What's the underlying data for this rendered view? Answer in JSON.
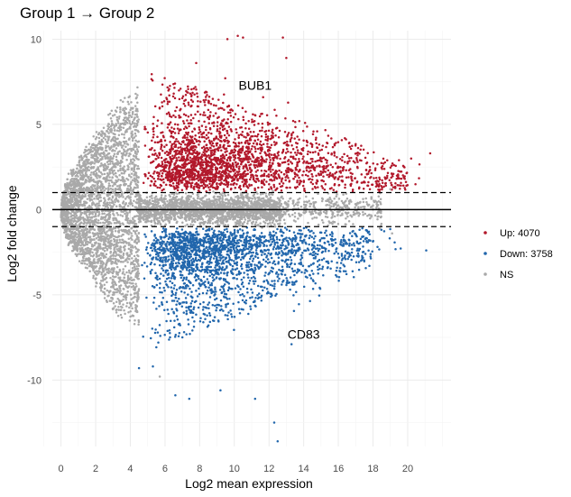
{
  "chart_data": {
    "type": "scatter",
    "title": "Group 1 → Group 2",
    "xlabel": "Log2 mean expression",
    "ylabel": "Log2 fold change",
    "xlim": [
      -0.5,
      22.5
    ],
    "ylim": [
      -13.9,
      10.5
    ],
    "x_ticks": [
      0,
      2,
      4,
      6,
      8,
      10,
      12,
      14,
      16,
      18,
      20
    ],
    "y_ticks": [
      -10,
      -5,
      0,
      5,
      10
    ],
    "grid": true,
    "reference_lines": {
      "zero": 0,
      "thresholds": [
        1,
        -1
      ]
    },
    "legend_position": "right",
    "colors": {
      "up": "#b2182b",
      "down": "#2166ac",
      "ns": "#a9a9a9"
    },
    "series": [
      {
        "name": "Up: 4070",
        "key": "up",
        "count": 4070
      },
      {
        "name": "Down: 3758",
        "key": "down",
        "count": 3758
      },
      {
        "name": "NS",
        "key": "ns"
      }
    ],
    "annotations": [
      {
        "text": "BUB1",
        "x": 11.2,
        "y": 7.3
      },
      {
        "text": "CD83",
        "x": 14.0,
        "y": -7.3
      }
    ],
    "outliers": {
      "up": [
        [
          10.2,
          10.2
        ],
        [
          10.5,
          10.1
        ],
        [
          12.8,
          10.1
        ],
        [
          9.6,
          10.0
        ],
        [
          13.0,
          8.9
        ],
        [
          7.8,
          8.6
        ],
        [
          20.2,
          3.0
        ],
        [
          21.3,
          3.3
        ],
        [
          19.5,
          2.9
        ],
        [
          18.6,
          2.7
        ]
      ],
      "down": [
        [
          12.3,
          -12.5
        ],
        [
          12.5,
          -13.6
        ],
        [
          6.6,
          -10.9
        ],
        [
          7.4,
          -11.1
        ],
        [
          9.2,
          -10.6
        ],
        [
          11.2,
          -11.1
        ],
        [
          13.3,
          -7.9
        ],
        [
          4.5,
          -9.3
        ],
        [
          5.3,
          -9.2
        ],
        [
          17.6,
          -1.2
        ]
      ],
      "ns": [
        [
          5.7,
          -9.8
        ],
        [
          19.1,
          -1.4
        ],
        [
          19.0,
          1.2
        ],
        [
          18.4,
          -1.1
        ],
        [
          16.2,
          0.5
        ],
        [
          15.8,
          -0.4
        ]
      ]
    }
  }
}
